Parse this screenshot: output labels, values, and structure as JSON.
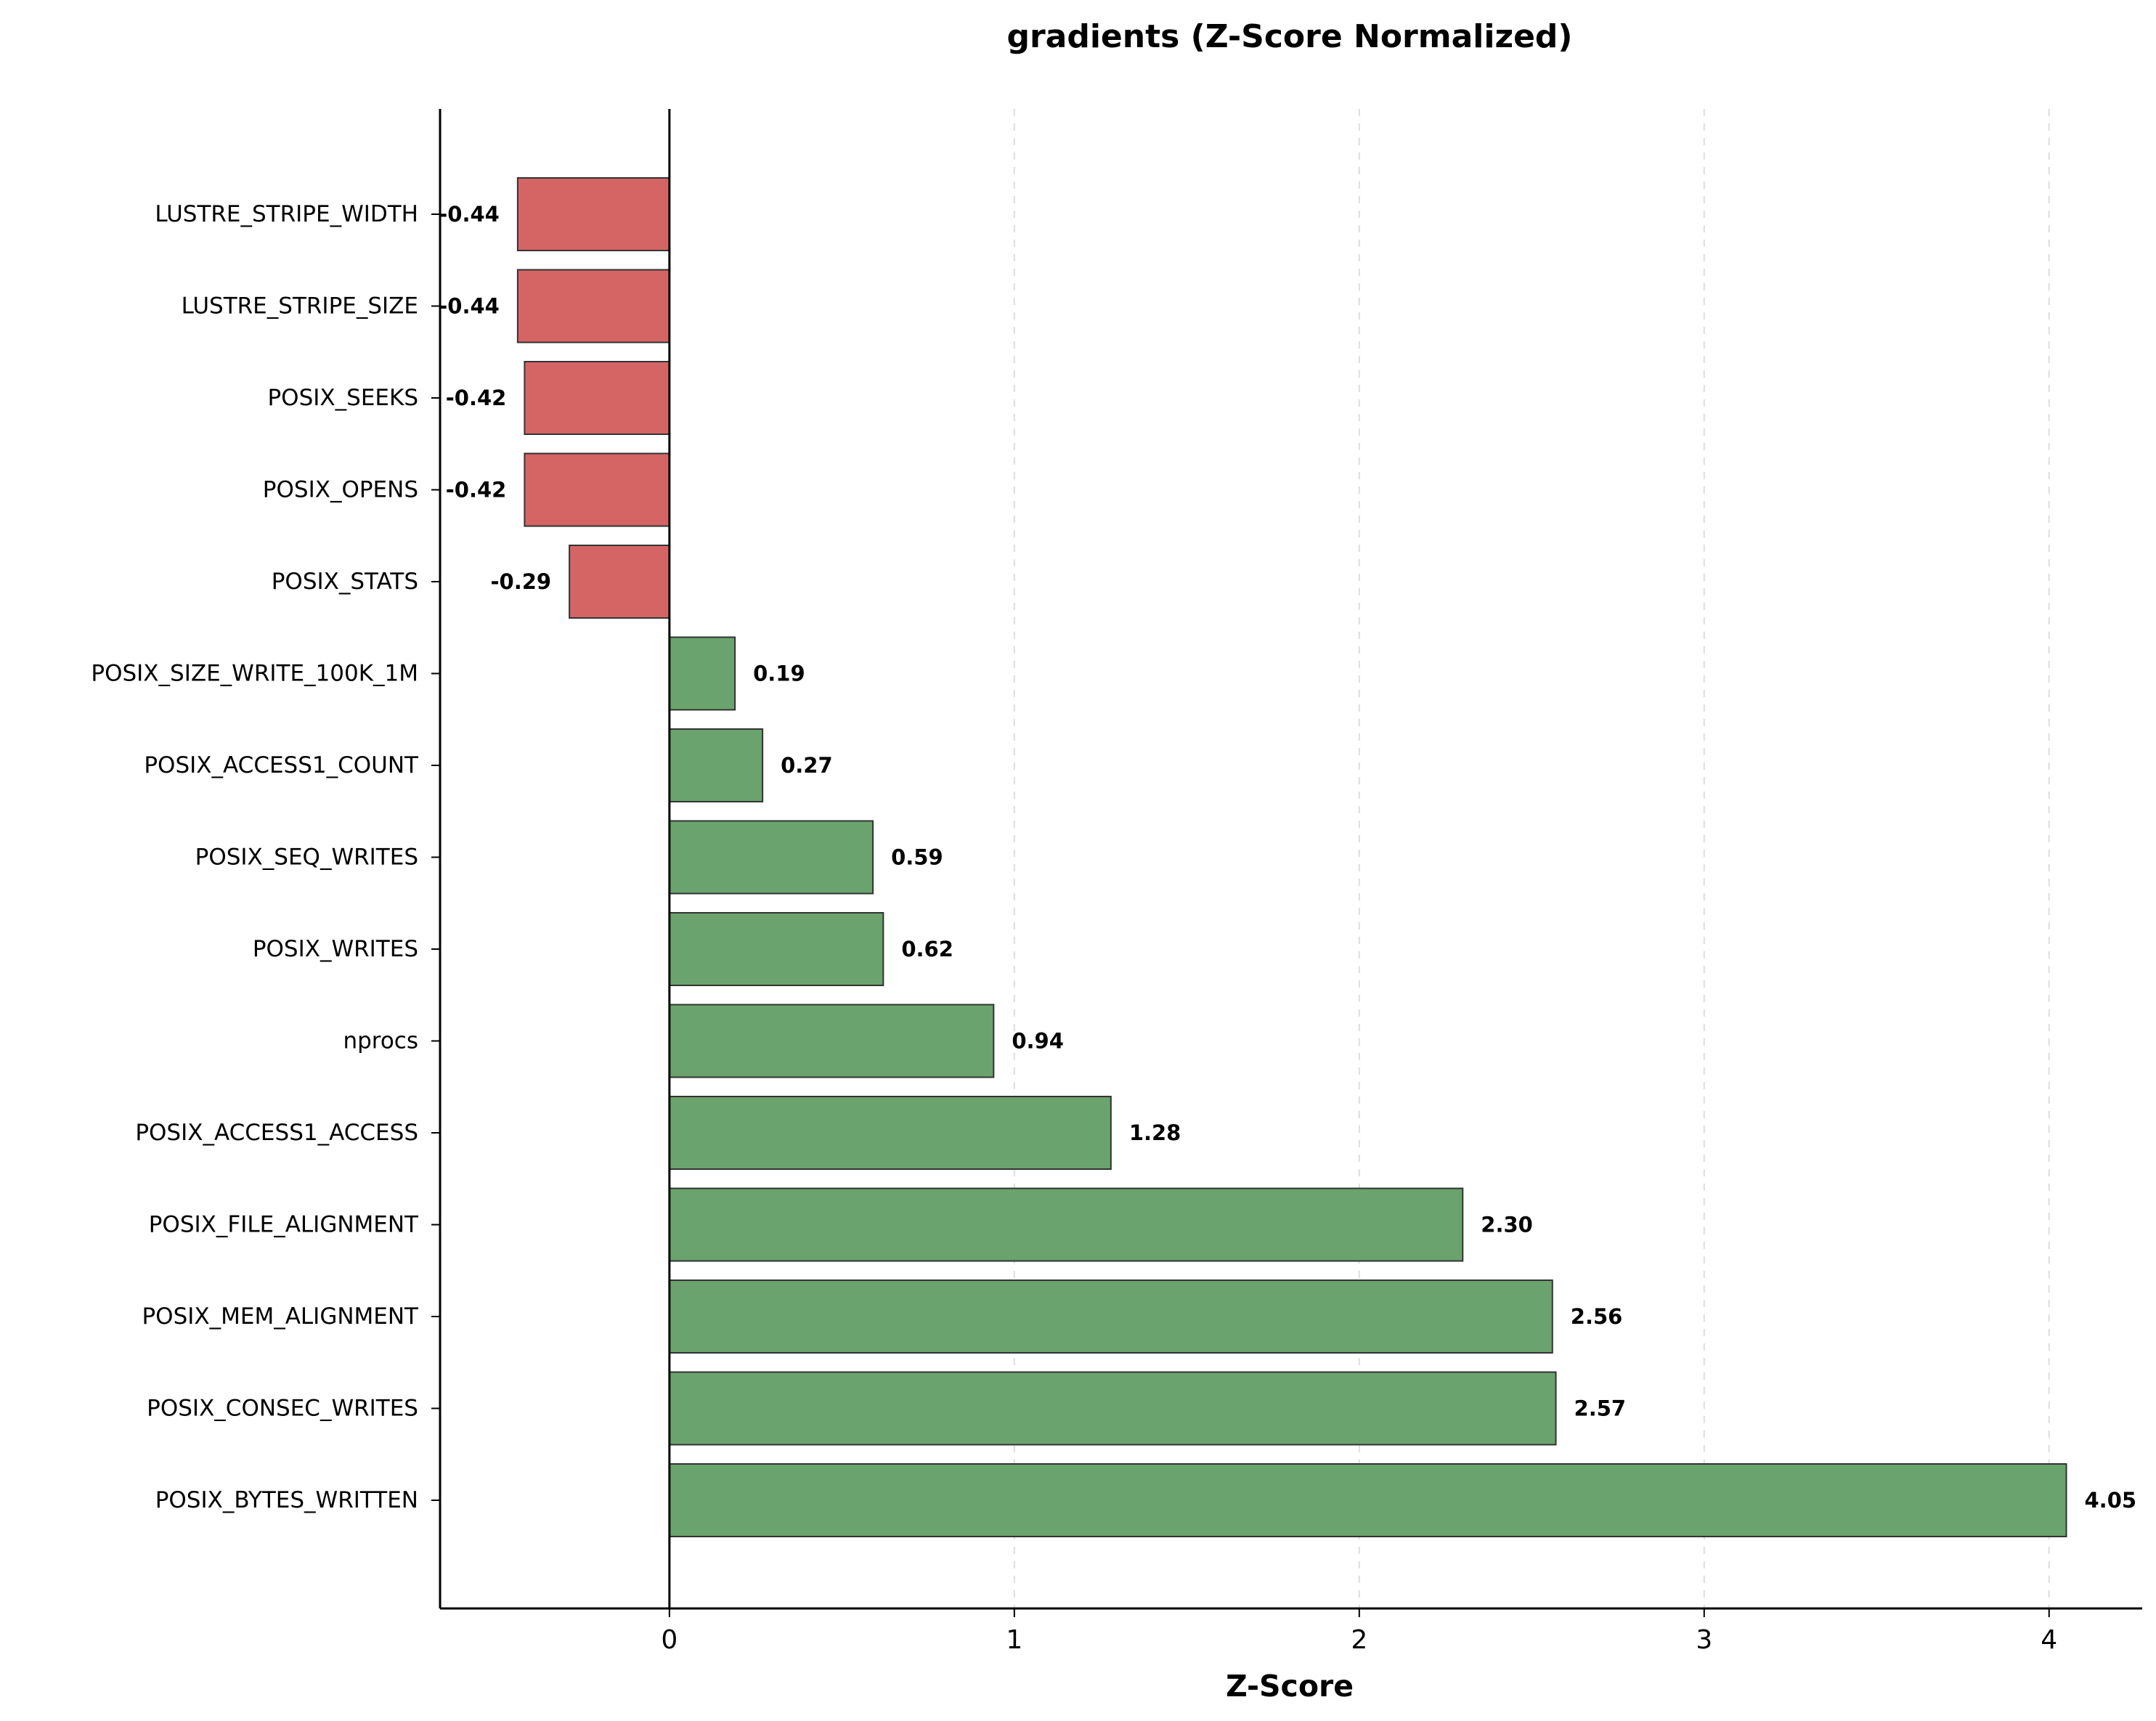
{
  "chart_data": {
    "type": "bar",
    "orientation": "horizontal",
    "title": "gradients (Z-Score Normalized)",
    "xlabel": "Z-Score",
    "ylabel": "",
    "xlim": [
      -0.665,
      4.27
    ],
    "xticks": [
      0,
      1,
      2,
      3,
      4
    ],
    "grid": "x-dashed",
    "categories": [
      "LUSTRE_STRIPE_WIDTH",
      "LUSTRE_STRIPE_SIZE",
      "POSIX_SEEKS",
      "POSIX_OPENS",
      "POSIX_STATS",
      "POSIX_SIZE_WRITE_100K_1M",
      "POSIX_ACCESS1_COUNT",
      "POSIX_SEQ_WRITES",
      "POSIX_WRITES",
      "nprocs",
      "POSIX_ACCESS1_ACCESS",
      "POSIX_FILE_ALIGNMENT",
      "POSIX_MEM_ALIGNMENT",
      "POSIX_CONSEC_WRITES",
      "POSIX_BYTES_WRITTEN"
    ],
    "values": [
      -0.44,
      -0.44,
      -0.42,
      -0.42,
      -0.29,
      0.19,
      0.27,
      0.59,
      0.62,
      0.94,
      1.28,
      2.3,
      2.56,
      2.57,
      4.05
    ],
    "value_labels": [
      "-0.44",
      "-0.44",
      "-0.42",
      "-0.42",
      "-0.29",
      "0.19",
      "0.27",
      "0.59",
      "0.62",
      "0.94",
      "1.28",
      "2.30",
      "2.56",
      "2.57",
      "4.05"
    ],
    "colors": {
      "positive": "#6aa36d",
      "negative": "#d56565",
      "edge": "#333333",
      "zero_line": "#000000",
      "grid": "#dddddd"
    }
  }
}
